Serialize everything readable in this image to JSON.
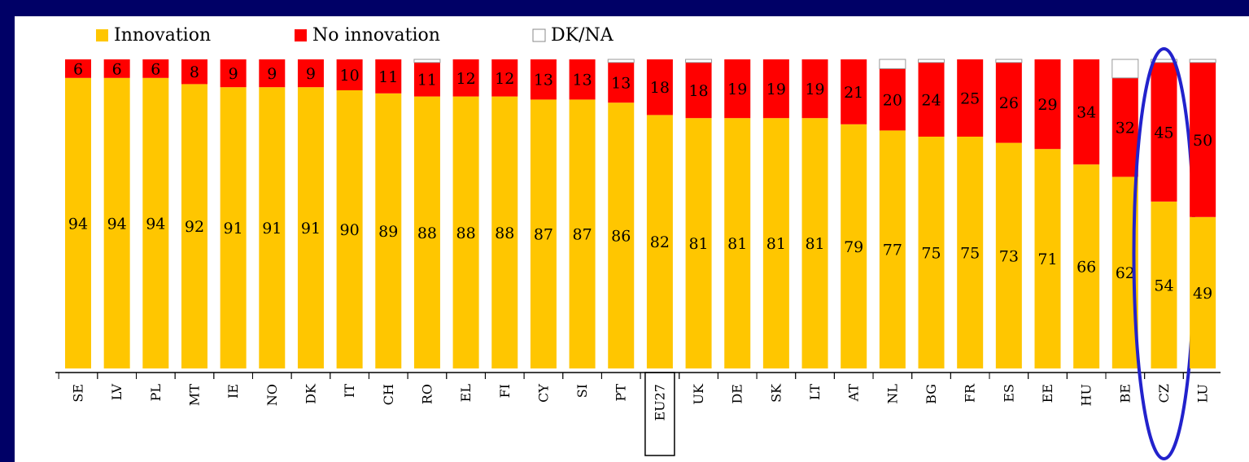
{
  "chart_data": {
    "type": "stacked_bar",
    "categories": [
      "SE",
      "LV",
      "PL",
      "MT",
      "IE",
      "NO",
      "DK",
      "IT",
      "CH",
      "RO",
      "EL",
      "FI",
      "CY",
      "SI",
      "PT",
      "EU27",
      "UK",
      "DE",
      "SK",
      "LT",
      "AT",
      "NL",
      "BG",
      "FR",
      "ES",
      "EE",
      "HU",
      "BE",
      "CZ",
      "LU"
    ],
    "series": [
      {
        "name": "Innovation",
        "color": "#ffc600",
        "values": [
          94,
          94,
          94,
          92,
          91,
          91,
          91,
          90,
          89,
          88,
          88,
          88,
          87,
          87,
          86,
          82,
          81,
          81,
          81,
          81,
          79,
          77,
          75,
          75,
          73,
          71,
          66,
          62,
          54,
          49
        ]
      },
      {
        "name": "No innovation",
        "color": "#ff0000",
        "values": [
          6,
          6,
          6,
          8,
          9,
          9,
          9,
          10,
          11,
          11,
          12,
          12,
          13,
          13,
          13,
          18,
          18,
          19,
          19,
          19,
          21,
          20,
          24,
          25,
          26,
          29,
          34,
          32,
          45,
          50
        ]
      },
      {
        "name": "DK/NA",
        "color": "#ffffff",
        "values": [
          0,
          0,
          0,
          0,
          0,
          0,
          0,
          0,
          0,
          1,
          0,
          0,
          0,
          0,
          1,
          0,
          1,
          0,
          0,
          0,
          0,
          3,
          1,
          0,
          1,
          0,
          0,
          6,
          1,
          1
        ]
      }
    ],
    "ylim": [
      0,
      100
    ],
    "highlight_category": "CZ",
    "boxed_category": "EU27"
  }
}
